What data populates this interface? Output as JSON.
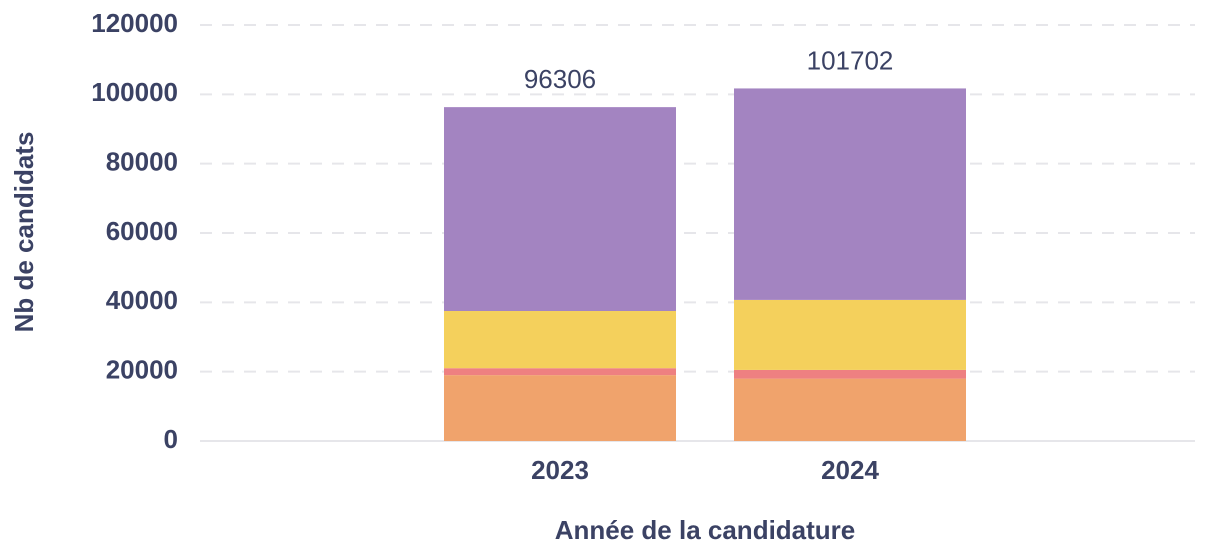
{
  "chart_data": {
    "type": "stacked-bar",
    "x_label": "Année de la candidature",
    "y_label": "Nb de candidats",
    "categories": [
      "2023",
      "2024"
    ],
    "series": [
      {
        "color": "#f0a36c",
        "values": [
          19000,
          18000
        ]
      },
      {
        "color": "#ee8081",
        "values": [
          2000,
          2500
        ]
      },
      {
        "color": "#f4d05c",
        "values": [
          16500,
          20200
        ]
      },
      {
        "color": "#a384c1",
        "values": [
          58806,
          61002
        ]
      }
    ],
    "totals": [
      96306,
      101702
    ],
    "ylim": [
      0,
      120000
    ],
    "yticks": [
      0,
      20000,
      40000,
      60000,
      80000,
      100000,
      120000
    ],
    "grid": true
  }
}
